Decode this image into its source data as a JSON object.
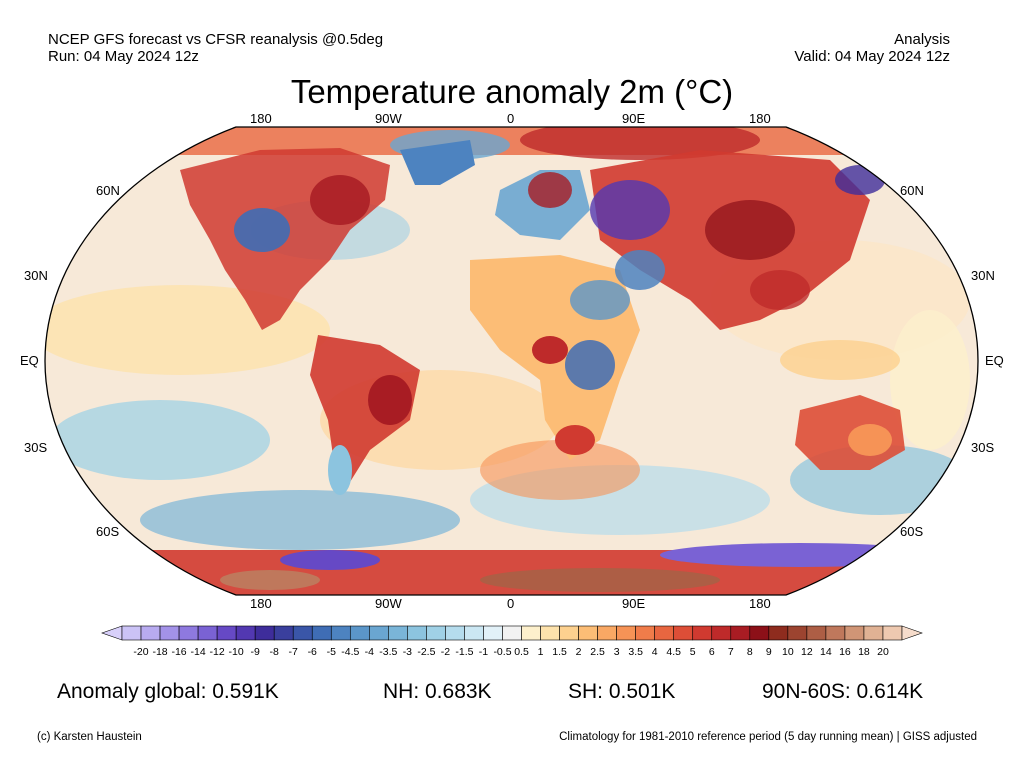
{
  "header": {
    "source_line": "NCEP GFS forecast vs CFSR reanalysis @0.5deg",
    "run_line": "Run: 04 May 2024 12z",
    "type_line": "Analysis",
    "valid_line": "Valid: 04 May 2024 12z"
  },
  "map": {
    "title": "Temperature anomaly 2m (°C)",
    "lon_labels_top": [
      "180",
      "90W",
      "0",
      "90E",
      "180"
    ],
    "lon_labels_bottom": [
      "180",
      "90W",
      "0",
      "90E",
      "180"
    ],
    "lat_labels_left": [
      "60N",
      "30N",
      "EQ",
      "30S",
      "60S"
    ],
    "lat_labels_right": [
      "60N",
      "30N",
      "EQ",
      "30S",
      "60S"
    ]
  },
  "colorbar": {
    "levels": [
      "-20",
      "-18",
      "-16",
      "-14",
      "-12",
      "-10",
      "-9",
      "-8",
      "-7",
      "-6",
      "-5",
      "-4.5",
      "-4",
      "-3.5",
      "-3",
      "-2.5",
      "-2",
      "-1.5",
      "-1",
      "-0.5",
      "0.5",
      "1",
      "1.5",
      "2",
      "2.5",
      "3",
      "3.5",
      "4",
      "4.5",
      "5",
      "6",
      "7",
      "8",
      "9",
      "10",
      "12",
      "14",
      "16",
      "18",
      "20"
    ],
    "colors": [
      "#cbc3f6",
      "#b8abf0",
      "#a392e8",
      "#8e79df",
      "#7a62d4",
      "#6649c5",
      "#5238b1",
      "#3e2d9b",
      "#3a3f9d",
      "#3a56a8",
      "#3f6db5",
      "#4d83c0",
      "#5b96c9",
      "#6aa6d1",
      "#7ab5d8",
      "#8cc4df",
      "#a0d1e6",
      "#b5dced",
      "#cbe7f3",
      "#e2f1f8",
      "#f2f2f2",
      "#fdf0cc",
      "#fde2ac",
      "#fdd18f",
      "#fcbd76",
      "#f9a864",
      "#f69356",
      "#f07c4a",
      "#e86640",
      "#dd4e37",
      "#d03a30",
      "#be2a2a",
      "#a81c23",
      "#8c1018",
      "#8e2c1e",
      "#9c4430",
      "#ad5e45",
      "#bf785c",
      "#d09576",
      "#e0b294",
      "#eec9b0"
    ],
    "under_color": "#d8d0fa",
    "over_color": "#f6dccb"
  },
  "stats": {
    "global": "Anomaly global: 0.591K",
    "nh": "NH: 0.683K",
    "sh": "SH: 0.501K",
    "arctic": "90N-60S: 0.614K"
  },
  "footer": {
    "credit": "(c) Karsten Haustein",
    "note": "Climatology for 1981-2010 reference period (5 day running mean) | GISS adjusted"
  }
}
